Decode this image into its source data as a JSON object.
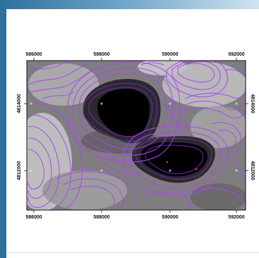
{
  "map": {
    "x_ticks": [
      "586000",
      "588000",
      "590000",
      "592000"
    ],
    "y_ticks": [
      "4814000",
      "4812000"
    ],
    "colors": {
      "contour": "#b040ff",
      "contour_dark": "#7a22c8",
      "relief_light": "#c8c8c8",
      "relief_dark": "#5a5a5a",
      "crater": "#000000",
      "frame_bar": "#2f6f9c"
    }
  }
}
